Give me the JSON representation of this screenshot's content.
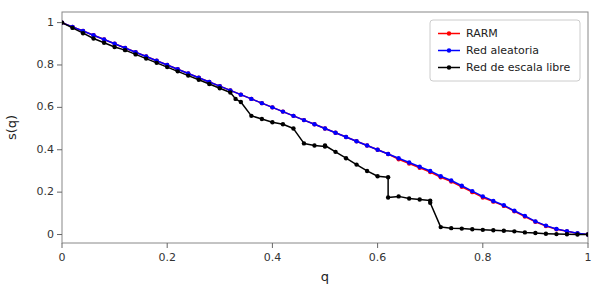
{
  "chart_data": {
    "type": "line",
    "xlabel": "q",
    "ylabel": "s(q)",
    "xlim": [
      0.0,
      1.0
    ],
    "ylim": [
      -0.04,
      1.05
    ],
    "xticks": [
      0,
      0.2,
      0.4,
      0.6,
      0.8,
      1
    ],
    "yticks": [
      0,
      0.2,
      0.4,
      0.6,
      0.8,
      1
    ],
    "grid": false,
    "legend": "upper right",
    "series": [
      {
        "name": "RARM",
        "color": "red",
        "marker": "circle",
        "line_style": "solid",
        "x": [
          0.0,
          0.02,
          0.04,
          0.06,
          0.08,
          0.1,
          0.12,
          0.14,
          0.16,
          0.18,
          0.2,
          0.22,
          0.24,
          0.26,
          0.28,
          0.3,
          0.32,
          0.34,
          0.36,
          0.38,
          0.4,
          0.42,
          0.44,
          0.46,
          0.48,
          0.5,
          0.52,
          0.54,
          0.56,
          0.58,
          0.6,
          0.62,
          0.64,
          0.66,
          0.68,
          0.7,
          0.72,
          0.74,
          0.76,
          0.78,
          0.8,
          0.82,
          0.84,
          0.86,
          0.88,
          0.9,
          0.92,
          0.94,
          0.96,
          0.98,
          1.0
        ],
        "values": [
          1.0,
          0.98,
          0.96,
          0.94,
          0.92,
          0.9,
          0.88,
          0.86,
          0.84,
          0.82,
          0.8,
          0.78,
          0.76,
          0.74,
          0.72,
          0.7,
          0.68,
          0.66,
          0.64,
          0.62,
          0.6,
          0.58,
          0.56,
          0.54,
          0.52,
          0.5,
          0.48,
          0.46,
          0.44,
          0.42,
          0.4,
          0.38,
          0.355,
          0.335,
          0.315,
          0.295,
          0.27,
          0.25,
          0.225,
          0.2,
          0.175,
          0.155,
          0.135,
          0.11,
          0.085,
          0.06,
          0.04,
          0.025,
          0.015,
          0.005,
          0.0
        ]
      },
      {
        "name": "Red aleatoria",
        "color": "blue",
        "marker": "circle",
        "line_style": "solid",
        "x": [
          0.0,
          0.02,
          0.04,
          0.06,
          0.08,
          0.1,
          0.12,
          0.14,
          0.16,
          0.18,
          0.2,
          0.22,
          0.24,
          0.26,
          0.28,
          0.3,
          0.32,
          0.34,
          0.36,
          0.38,
          0.4,
          0.42,
          0.44,
          0.46,
          0.48,
          0.5,
          0.52,
          0.54,
          0.56,
          0.58,
          0.6,
          0.62,
          0.64,
          0.66,
          0.68,
          0.7,
          0.72,
          0.74,
          0.76,
          0.78,
          0.8,
          0.82,
          0.84,
          0.86,
          0.88,
          0.9,
          0.92,
          0.94,
          0.96,
          0.98,
          1.0
        ],
        "values": [
          1.0,
          0.98,
          0.96,
          0.94,
          0.92,
          0.9,
          0.88,
          0.86,
          0.84,
          0.82,
          0.8,
          0.78,
          0.76,
          0.74,
          0.72,
          0.7,
          0.68,
          0.66,
          0.64,
          0.62,
          0.6,
          0.58,
          0.56,
          0.54,
          0.52,
          0.5,
          0.48,
          0.46,
          0.44,
          0.42,
          0.4,
          0.38,
          0.36,
          0.34,
          0.32,
          0.3,
          0.275,
          0.255,
          0.23,
          0.205,
          0.18,
          0.158,
          0.138,
          0.112,
          0.088,
          0.062,
          0.042,
          0.026,
          0.016,
          0.006,
          0.0
        ]
      },
      {
        "name": "Red de escala libre",
        "color": "black",
        "marker": "circle",
        "line_style": "solid",
        "x": [
          0.0,
          0.02,
          0.04,
          0.06,
          0.08,
          0.1,
          0.12,
          0.14,
          0.16,
          0.18,
          0.2,
          0.22,
          0.24,
          0.26,
          0.28,
          0.3,
          0.32,
          0.33,
          0.34,
          0.36,
          0.38,
          0.4,
          0.42,
          0.44,
          0.46,
          0.48,
          0.5,
          0.5,
          0.52,
          0.54,
          0.56,
          0.58,
          0.6,
          0.62,
          0.62,
          0.64,
          0.66,
          0.68,
          0.7,
          0.7,
          0.72,
          0.74,
          0.76,
          0.78,
          0.8,
          0.82,
          0.84,
          0.86,
          0.88,
          0.9,
          0.92,
          0.94,
          0.96,
          0.98,
          1.0
        ],
        "values": [
          1.0,
          0.975,
          0.95,
          0.925,
          0.905,
          0.885,
          0.87,
          0.85,
          0.83,
          0.81,
          0.79,
          0.77,
          0.75,
          0.73,
          0.71,
          0.69,
          0.67,
          0.64,
          0.625,
          0.56,
          0.545,
          0.53,
          0.52,
          0.5,
          0.43,
          0.42,
          0.415,
          0.42,
          0.39,
          0.36,
          0.33,
          0.3,
          0.275,
          0.27,
          0.175,
          0.18,
          0.17,
          0.165,
          0.16,
          0.15,
          0.035,
          0.03,
          0.028,
          0.025,
          0.022,
          0.02,
          0.018,
          0.015,
          0.01,
          0.007,
          0.004,
          0.002,
          0.001,
          0.0,
          0.0
        ]
      }
    ]
  }
}
